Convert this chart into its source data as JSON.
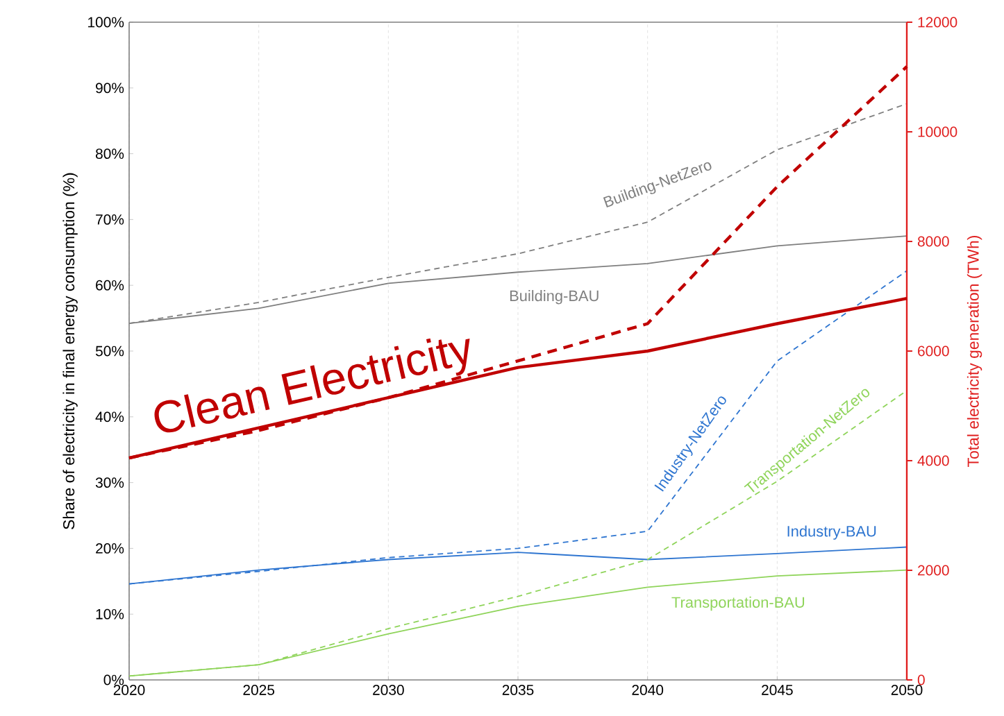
{
  "chart_data": {
    "type": "line",
    "ylabel": "Share of electricity in final energy consumption (%)",
    "y2label": "Total electricity generation (TWh)",
    "x": [
      2020,
      2025,
      2030,
      2035,
      2040,
      2045,
      2050
    ],
    "xlim": [
      2020,
      2050
    ],
    "xticks": [
      2020,
      2025,
      2030,
      2035,
      2040,
      2045,
      2050
    ],
    "ylim": [
      0,
      100
    ],
    "yticks": [
      {
        "value": 0,
        "label": "0%"
      },
      {
        "value": 10,
        "label": "10%"
      },
      {
        "value": 20,
        "label": "20%"
      },
      {
        "value": 30,
        "label": "30%"
      },
      {
        "value": 40,
        "label": "40%"
      },
      {
        "value": 50,
        "label": "50%"
      },
      {
        "value": 60,
        "label": "60%"
      },
      {
        "value": 70,
        "label": "70%"
      },
      {
        "value": 80,
        "label": "80%"
      },
      {
        "value": 90,
        "label": "90%"
      },
      {
        "value": 100,
        "label": "100%"
      }
    ],
    "y2lim": [
      0,
      12000
    ],
    "y2ticks": [
      0,
      2000,
      4000,
      6000,
      8000,
      10000,
      12000
    ],
    "grid": "x",
    "marker": "none",
    "series": [
      {
        "name": "Building-BAU",
        "color": "#7f7f7f",
        "line_style": "solid",
        "values": [
          54.2,
          56.5,
          60.3,
          62,
          63.3,
          66,
          67.5
        ]
      },
      {
        "name": "Building-NetZero",
        "color": "#7f7f7f",
        "line_style": "dashed",
        "values": [
          54.2,
          57.4,
          61.2,
          64.8,
          69.6,
          80.6,
          87.6
        ]
      },
      {
        "name": "Industry-BAU",
        "color": "#2e75d0",
        "line_style": "solid",
        "values": [
          14.6,
          16.7,
          18.3,
          19.4,
          18.3,
          19.2,
          20.2
        ]
      },
      {
        "name": "Industry-NetZero",
        "color": "#2e75d0",
        "line_style": "dashed",
        "values": [
          14.6,
          16.5,
          18.6,
          20,
          22.6,
          48.5,
          62.2
        ]
      },
      {
        "name": "Transportation-BAU",
        "color": "#8fd45a",
        "line_style": "solid",
        "values": [
          0.6,
          2.3,
          7,
          11.2,
          14.1,
          15.8,
          16.7
        ]
      },
      {
        "name": "Transportation-NetZero",
        "color": "#8fd45a",
        "line_style": "dashed",
        "values": [
          0.6,
          2.3,
          7.8,
          12.7,
          18.3,
          30.2,
          44
        ]
      },
      {
        "color": "#c00000",
        "line_style": "solid",
        "axis": "y2",
        "values": [
          4050,
          4600,
          5150,
          5700,
          6000,
          6500,
          6960
        ]
      },
      {
        "color": "#c00000",
        "line_style": "dashed",
        "axis": "y2",
        "values": [
          4050,
          4550,
          5150,
          5820,
          6500,
          9000,
          11190
        ]
      }
    ],
    "annotations": [
      "Clean Electricity"
    ]
  }
}
